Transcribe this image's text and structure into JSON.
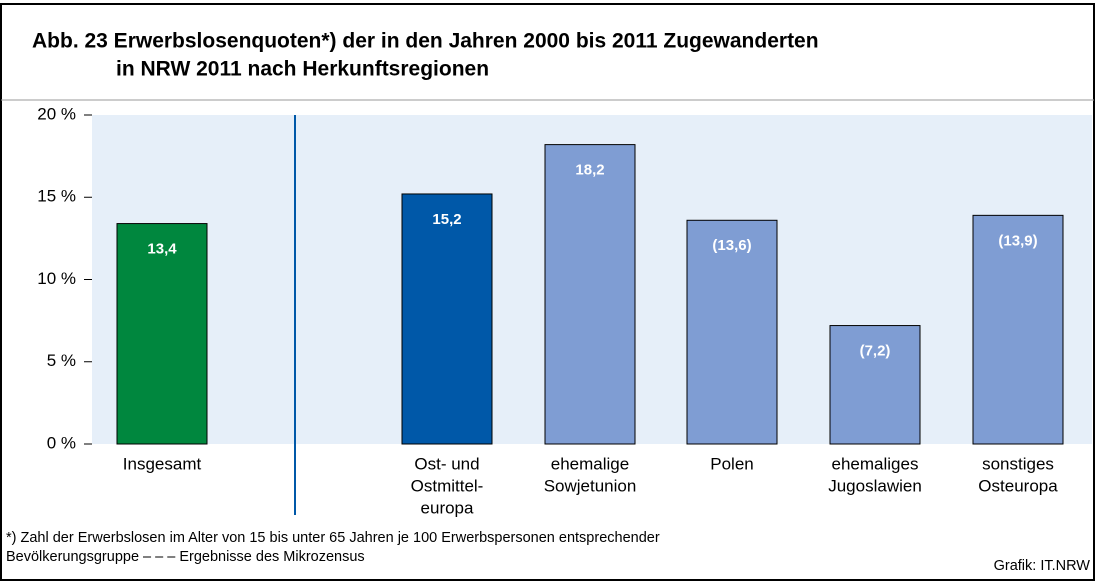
{
  "chart_data": {
    "type": "bar",
    "title": [
      "Abb. 23  Erwerbslosenquoten*) der in den Jahren 2000 bis 2011 Zugewanderten",
      "in NRW 2011 nach Herkunftsregionen"
    ],
    "categories": [
      [
        "Insgesamt"
      ],
      [
        "Ost- und",
        "Ostmittel-",
        "europa"
      ],
      [
        "ehemalige",
        "Sowjetunion"
      ],
      [
        "Polen"
      ],
      [
        "ehemaliges",
        "Jugoslawien"
      ],
      [
        "sonstiges",
        "Osteuropa"
      ]
    ],
    "values": [
      13.4,
      15.2,
      18.2,
      13.6,
      7.2,
      13.9
    ],
    "value_labels": [
      "13,4",
      "15,2",
      "18,2",
      "(13,6)",
      "(7,2)",
      "(13,9)"
    ],
    "colors": [
      "#00873e",
      "#0058a8",
      "#7f9dd3",
      "#7f9dd3",
      "#7f9dd3",
      "#7f9dd3"
    ],
    "ylim": [
      0,
      20
    ],
    "yticks": [
      {
        "value": 0,
        "label": "0 %"
      },
      {
        "value": 5,
        "label": "5 %"
      },
      {
        "value": 10,
        "label": "10 %"
      },
      {
        "value": 15,
        "label": "15 %"
      },
      {
        "value": 20,
        "label": "20 %"
      }
    ],
    "footnote": [
      "*) Zahl der Erwerbslosen im Alter von 15 bis unter 65 Jahren je 100 Erwerbspersonen entsprechender",
      "Bevölkerungsgruppe – – – Ergebnisse des Mikrozensus"
    ],
    "source": "Grafik: IT.NRW"
  }
}
